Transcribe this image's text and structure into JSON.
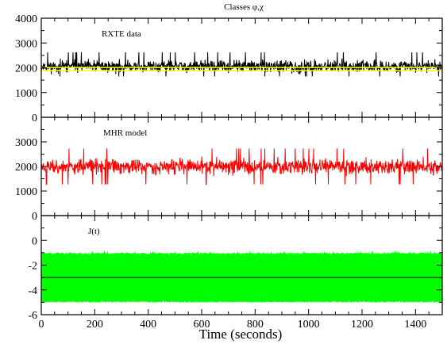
{
  "figure": {
    "title": "Classes φ,χ",
    "xlabel": "Time  (seconds)"
  },
  "chart_data": [
    {
      "type": "line",
      "label": "RXTE  data",
      "color": "#000000",
      "mean_line_color": "#ffff00",
      "mean_value": 1950,
      "ylim": [
        0,
        4000
      ],
      "yticks": [
        0,
        1000,
        2000,
        3000,
        4000
      ],
      "xlim": [
        0,
        1500
      ],
      "xticks": [
        0,
        200,
        400,
        600,
        800,
        1000,
        1200,
        1400
      ],
      "series": {
        "x_range": [
          0,
          1500
        ],
        "center": 2050,
        "spread": 220,
        "low": 1650,
        "high": 2900,
        "samples": 1200,
        "seed": 11
      }
    },
    {
      "type": "line",
      "label": "MHR model",
      "color": "#ff0000",
      "ylim": [
        0,
        4000
      ],
      "yticks": [
        0,
        1000,
        2000,
        3000
      ],
      "xlim": [
        0,
        1500
      ],
      "xticks": [
        0,
        200,
        400,
        600,
        800,
        1000,
        1200,
        1400
      ],
      "series": {
        "x_range": [
          0,
          1500
        ],
        "center": 2000,
        "spread": 280,
        "low": 1200,
        "high": 2800,
        "samples": 1200,
        "seed": 23
      }
    },
    {
      "type": "area",
      "label": "J(t)",
      "color": "#00ff00",
      "mean_line_color": "#000000",
      "mean_value": -3,
      "ylim": [
        -6,
        2
      ],
      "yticks": [
        -6,
        -4,
        -2,
        0
      ],
      "xlim": [
        0,
        1500
      ],
      "xticks": [
        0,
        200,
        400,
        600,
        800,
        1000,
        1200,
        1400
      ],
      "series": {
        "x_range": [
          0,
          1500
        ],
        "low": -5.0,
        "high": -1.0,
        "samples": 1200,
        "seed": 37
      }
    }
  ]
}
